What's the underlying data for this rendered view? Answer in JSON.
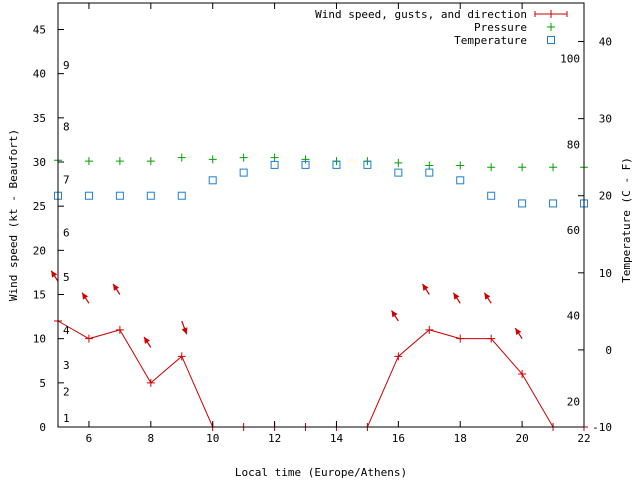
{
  "chart_data": {
    "type": "line",
    "xlabel": "Local time (Europe/Athens)",
    "ylabel_left": "Wind speed (kt - Beaufort)",
    "ylabel_right": "Temperature (C - F)",
    "xlim": [
      5,
      22
    ],
    "ylim_left": [
      0,
      48
    ],
    "ylim_right_celsius": [
      -10,
      45
    ],
    "x_ticks": [
      6,
      8,
      10,
      12,
      14,
      16,
      18,
      20,
      22
    ],
    "y_left_ticks": [
      0,
      5,
      10,
      15,
      20,
      25,
      30,
      35,
      40,
      45
    ],
    "y_right_c_ticks": [
      -10,
      0,
      10,
      20,
      30,
      40
    ],
    "y_right_f_ticks": [
      20,
      40,
      60,
      80,
      100
    ],
    "beaufort_ticks": [
      {
        "label": "1",
        "kt": 1
      },
      {
        "label": "2",
        "kt": 4
      },
      {
        "label": "3",
        "kt": 7
      },
      {
        "label": "4",
        "kt": 11
      },
      {
        "label": "5",
        "kt": 17
      },
      {
        "label": "6",
        "kt": 22
      },
      {
        "label": "7",
        "kt": 28
      },
      {
        "label": "8",
        "kt": 34
      },
      {
        "label": "9",
        "kt": 41
      }
    ],
    "legend": {
      "position": "top-right",
      "entries": [
        {
          "label": "Wind speed, gusts, and direction",
          "color": "#cc0000",
          "symbol": "+"
        },
        {
          "label": "Pressure",
          "color": "#00a000",
          "symbol": "+"
        },
        {
          "label": "Temperature",
          "color": "#1f7fd0",
          "symbol": "square"
        }
      ]
    },
    "series": [
      {
        "name": "Wind speed, gusts, and direction",
        "axis": "left",
        "color": "#cc0000",
        "x": [
          5,
          6,
          7,
          8,
          9,
          10,
          11,
          12,
          13,
          14,
          15,
          16,
          17,
          18,
          19,
          20,
          21,
          22
        ],
        "values": [
          12,
          10,
          11,
          5,
          8,
          0,
          0,
          0,
          0,
          0,
          0,
          8,
          11,
          10,
          10,
          6,
          0,
          0
        ]
      },
      {
        "name": "Wind direction arrows",
        "axis": "left",
        "color": "#cc0000",
        "arrows": [
          {
            "x": 5,
            "y": 16.5,
            "dx": -0.22,
            "dy": 1.2
          },
          {
            "x": 6,
            "y": 14.0,
            "dx": -0.22,
            "dy": 1.2
          },
          {
            "x": 7,
            "y": 15.0,
            "dx": -0.22,
            "dy": 1.2
          },
          {
            "x": 8,
            "y": 9.0,
            "dx": -0.22,
            "dy": 1.2
          },
          {
            "x": 9,
            "y": 12.0,
            "dx": 0.16,
            "dy": -1.5
          },
          {
            "x": 16,
            "y": 12.0,
            "dx": -0.22,
            "dy": 1.2
          },
          {
            "x": 17,
            "y": 15.0,
            "dx": -0.22,
            "dy": 1.2
          },
          {
            "x": 18,
            "y": 14.0,
            "dx": -0.22,
            "dy": 1.2
          },
          {
            "x": 19,
            "y": 14.0,
            "dx": -0.22,
            "dy": 1.2
          },
          {
            "x": 20,
            "y": 10.0,
            "dx": -0.22,
            "dy": 1.2
          }
        ]
      },
      {
        "name": "Pressure",
        "axis": "left",
        "color": "#00a000",
        "x": [
          5,
          6,
          7,
          8,
          9,
          10,
          11,
          12,
          13,
          14,
          15,
          16,
          17,
          18,
          19,
          20,
          21,
          22
        ],
        "values": [
          30.2,
          30.1,
          30.1,
          30.1,
          30.5,
          30.3,
          30.5,
          30.5,
          30.3,
          30.1,
          30.1,
          29.9,
          29.6,
          29.6,
          29.4,
          29.4,
          29.4,
          29.4
        ]
      },
      {
        "name": "Temperature",
        "axis": "right",
        "unit": "C",
        "color": "#1f7fd0",
        "x": [
          5,
          6,
          7,
          8,
          9,
          10,
          11,
          12,
          13,
          14,
          15,
          16,
          17,
          18,
          19,
          20,
          21,
          22
        ],
        "values": [
          20,
          20,
          20,
          20,
          20,
          22,
          23,
          24,
          24,
          24,
          24,
          23,
          23,
          22,
          20,
          19,
          19,
          19
        ]
      }
    ]
  }
}
